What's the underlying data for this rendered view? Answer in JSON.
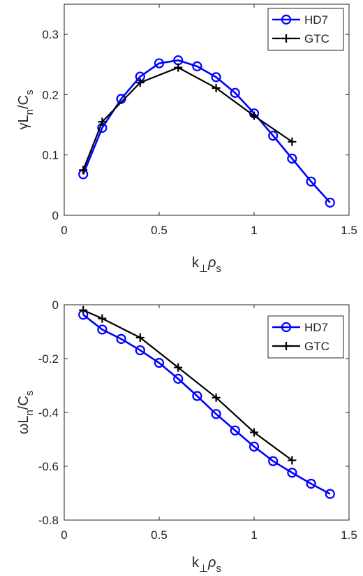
{
  "chart_data": [
    {
      "type": "line",
      "title": "",
      "xlabel": {
        "base": "k",
        "sub1": "⊥",
        "greek": "ρ",
        "sub2": "s"
      },
      "ylabel": {
        "greek": "γ",
        "base": "L",
        "sub": "n",
        "rest": "/C",
        "sub2": "s"
      },
      "xlim": [
        0,
        1.5
      ],
      "ylim": [
        0,
        0.35
      ],
      "xticks": [
        0,
        0.5,
        1,
        1.5
      ],
      "xtick_labels": [
        "0",
        "0.5",
        "1",
        "1.5"
      ],
      "yticks": [
        0,
        0.1,
        0.2,
        0.3
      ],
      "ytick_labels": [
        "0",
        "0.1",
        "0.2",
        "0.3"
      ],
      "grid": false,
      "legend_position": "top-right",
      "series": [
        {
          "name": "HD7",
          "color": "#0000ff",
          "marker": "circle",
          "x": [
            0.1,
            0.2,
            0.3,
            0.4,
            0.5,
            0.6,
            0.7,
            0.8,
            0.9,
            1.0,
            1.1,
            1.2,
            1.3,
            1.4
          ],
          "y": [
            0.068,
            0.145,
            0.193,
            0.23,
            0.252,
            0.257,
            0.247,
            0.229,
            0.203,
            0.169,
            0.132,
            0.094,
            0.056,
            0.021
          ]
        },
        {
          "name": "GTC",
          "color": "#000000",
          "marker": "plus",
          "x": [
            0.1,
            0.2,
            0.4,
            0.6,
            0.8,
            1.0,
            1.2
          ],
          "y": [
            0.075,
            0.155,
            0.22,
            0.245,
            0.211,
            0.165,
            0.122
          ]
        }
      ]
    },
    {
      "type": "line",
      "title": "",
      "xlabel": {
        "base": "k",
        "sub1": "⊥",
        "greek": "ρ",
        "sub2": "s"
      },
      "ylabel": {
        "greek": "ω",
        "base": "L",
        "sub": "n",
        "rest": "/C",
        "sub2": "s"
      },
      "xlim": [
        0,
        1.5
      ],
      "ylim": [
        -0.8,
        0
      ],
      "xticks": [
        0,
        0.5,
        1,
        1.5
      ],
      "xtick_labels": [
        "0",
        "0.5",
        "1",
        "1.5"
      ],
      "yticks": [
        -0.8,
        -0.6,
        -0.4,
        -0.2,
        0
      ],
      "ytick_labels": [
        "-0.8",
        "-0.6",
        "-0.4",
        "-0.2",
        "0"
      ],
      "grid": false,
      "legend_position": "top-right",
      "series": [
        {
          "name": "HD7",
          "color": "#0000ff",
          "marker": "circle",
          "x": [
            0.1,
            0.2,
            0.3,
            0.4,
            0.5,
            0.6,
            0.7,
            0.8,
            0.9,
            1.0,
            1.1,
            1.2,
            1.3,
            1.4
          ],
          "y": [
            -0.037,
            -0.092,
            -0.127,
            -0.169,
            -0.216,
            -0.275,
            -0.339,
            -0.406,
            -0.467,
            -0.527,
            -0.581,
            -0.624,
            -0.665,
            -0.703
          ]
        },
        {
          "name": "GTC",
          "color": "#000000",
          "marker": "plus",
          "x": [
            0.1,
            0.2,
            0.4,
            0.6,
            0.8,
            1.0,
            1.2
          ],
          "y": [
            -0.02,
            -0.051,
            -0.122,
            -0.233,
            -0.345,
            -0.474,
            -0.578
          ]
        }
      ]
    }
  ]
}
